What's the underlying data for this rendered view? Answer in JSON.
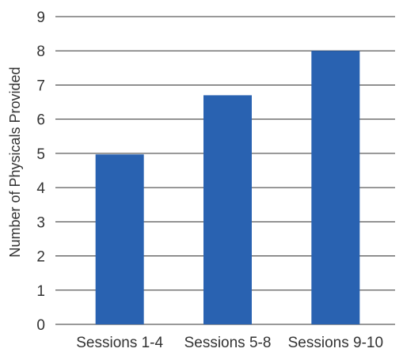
{
  "chart_data": {
    "type": "bar",
    "title": "",
    "xlabel": "",
    "ylabel": "Number of Physicals Provided",
    "categories": [
      "Sessions 1-4",
      "Sessions 5-8",
      "Sessions 9-10"
    ],
    "values": [
      4.97,
      6.7,
      8.0
    ],
    "ylim": [
      0,
      9
    ],
    "yticks": [
      0,
      1,
      2,
      3,
      4,
      5,
      6,
      7,
      8,
      9
    ],
    "grid": true,
    "legend": "none",
    "bar_color": "#2962b1",
    "grid_color": "#333333"
  }
}
